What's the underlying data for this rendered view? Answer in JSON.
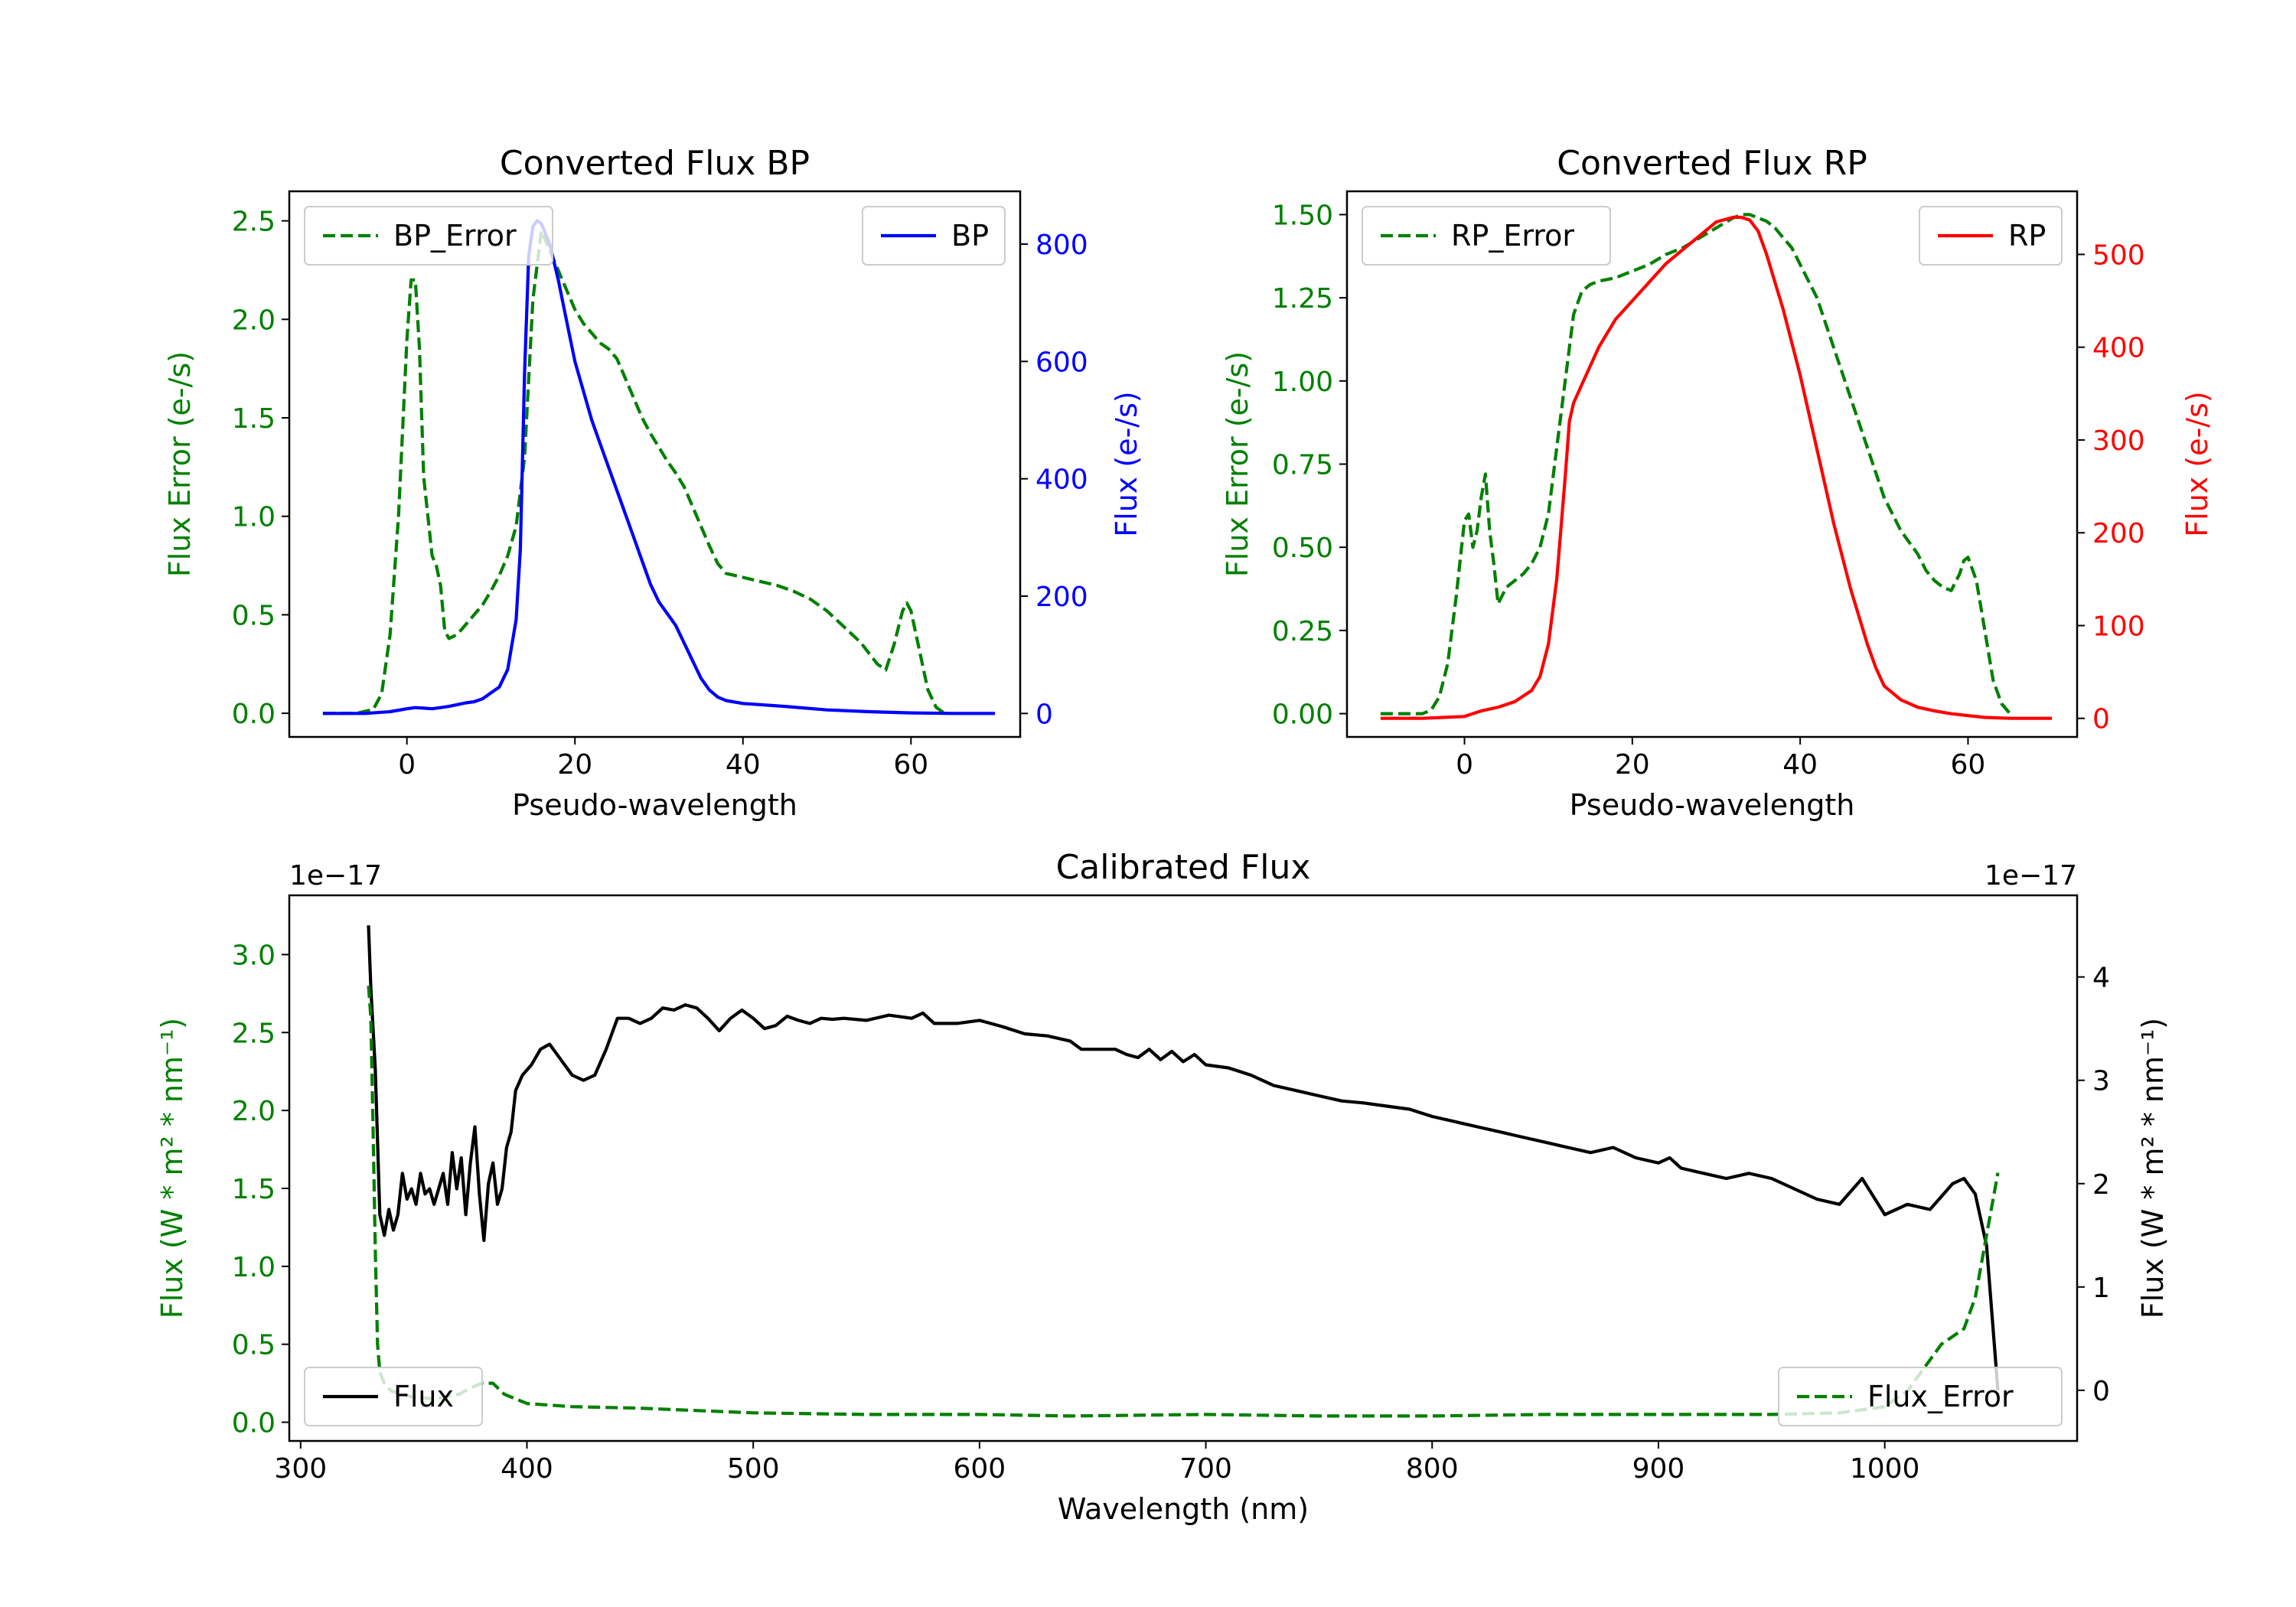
{
  "colors": {
    "bp": "#0000ff",
    "rp": "#ff0000",
    "error": "#008000",
    "flux": "#000000",
    "axis": "#000000",
    "legend_border": "#cccccc"
  },
  "chart_data": [
    {
      "type": "line",
      "title": "Converted Flux BP",
      "xlabel": "Pseudo-wavelength",
      "ylabel": "Flux Error (e-/s)",
      "ylabel_right": "Flux (e-/s)",
      "xlim": [
        -14,
        73
      ],
      "ylim": [
        -0.12,
        2.65
      ],
      "ylim_right": [
        -40,
        890
      ],
      "xticks": [
        "0",
        "20",
        "40",
        "60"
      ],
      "yticks": [
        "0.0",
        "0.5",
        "1.0",
        "1.5",
        "2.0",
        "2.5"
      ],
      "yticks_right": [
        "0",
        "200",
        "400",
        "600",
        "800"
      ],
      "legend_left": "BP_Error",
      "legend_right": "BP",
      "series": [
        {
          "name": "BP_Error",
          "axis": "left",
          "style": "dashed",
          "x": [
            -10,
            -6,
            -4,
            -3,
            -2,
            -1,
            0,
            0.5,
            1,
            1.5,
            2,
            3,
            3.5,
            4,
            4.5,
            5,
            6,
            7,
            8,
            9,
            10,
            11,
            12,
            13,
            14,
            15,
            16,
            17,
            18,
            19,
            20,
            21,
            22,
            23,
            24,
            25,
            26,
            27,
            28,
            29,
            30,
            31,
            32,
            33,
            34,
            35,
            36,
            37,
            38,
            39,
            40,
            42,
            44,
            46,
            48,
            50,
            52,
            54,
            56,
            57,
            58,
            59,
            59.5,
            60,
            61,
            62,
            63,
            64
          ],
          "y": [
            0.0,
            0.0,
            0.02,
            0.1,
            0.4,
            1.0,
            1.9,
            2.2,
            2.2,
            1.85,
            1.2,
            0.8,
            0.75,
            0.65,
            0.42,
            0.38,
            0.4,
            0.45,
            0.5,
            0.55,
            0.62,
            0.7,
            0.8,
            0.95,
            1.3,
            2.1,
            2.45,
            2.35,
            2.25,
            2.15,
            2.05,
            1.98,
            1.93,
            1.88,
            1.85,
            1.8,
            1.7,
            1.6,
            1.5,
            1.42,
            1.35,
            1.28,
            1.22,
            1.15,
            1.05,
            0.95,
            0.85,
            0.76,
            0.71,
            0.7,
            0.69,
            0.67,
            0.65,
            0.62,
            0.58,
            0.52,
            0.44,
            0.36,
            0.25,
            0.22,
            0.35,
            0.52,
            0.56,
            0.52,
            0.32,
            0.12,
            0.03,
            0.0
          ]
        },
        {
          "name": "BP",
          "axis": "right",
          "style": "solid",
          "x": [
            -10,
            -5,
            -2,
            0,
            1,
            2,
            3,
            4,
            5,
            6,
            7,
            8,
            9,
            10,
            11,
            12,
            13,
            13.5,
            14,
            14.5,
            15,
            15.5,
            16,
            17,
            18,
            19,
            20,
            21,
            22,
            23,
            24,
            25,
            26,
            27,
            28,
            29,
            30,
            31,
            32,
            33,
            34,
            35,
            36,
            37,
            38,
            40,
            45,
            50,
            55,
            60,
            65,
            70
          ],
          "y": [
            0,
            0,
            3,
            8,
            10,
            9,
            8,
            10,
            12,
            15,
            18,
            20,
            25,
            35,
            45,
            75,
            160,
            280,
            580,
            780,
            830,
            840,
            835,
            800,
            740,
            670,
            600,
            550,
            500,
            460,
            420,
            380,
            340,
            300,
            260,
            220,
            190,
            170,
            150,
            120,
            90,
            60,
            40,
            28,
            22,
            17,
            12,
            6,
            3,
            1,
            0,
            0
          ]
        }
      ]
    },
    {
      "type": "line",
      "title": "Converted Flux RP",
      "xlabel": "Pseudo-wavelength",
      "ylabel": "Flux Error (e-/s)",
      "ylabel_right": "Flux (e-/s)",
      "xlim": [
        -14,
        73
      ],
      "ylim": [
        -0.07,
        1.57
      ],
      "ylim_right": [
        -20,
        568
      ],
      "xticks": [
        "0",
        "20",
        "40",
        "60"
      ],
      "yticks": [
        "0.00",
        "0.25",
        "0.50",
        "0.75",
        "1.00",
        "1.25",
        "1.50"
      ],
      "yticks_right": [
        "0",
        "100",
        "200",
        "300",
        "400",
        "500"
      ],
      "legend_left": "RP_Error",
      "legend_right": "RP",
      "series": [
        {
          "name": "RP_Error",
          "axis": "left",
          "style": "dashed",
          "x": [
            -10,
            -5,
            -4,
            -3,
            -2,
            -1,
            0,
            0.5,
            1,
            1.5,
            2,
            2.5,
            3,
            3.5,
            4,
            5,
            6,
            7,
            8,
            9,
            10,
            11,
            12,
            13,
            14,
            15,
            16,
            18,
            20,
            22,
            24,
            26,
            28,
            30,
            32,
            33,
            34,
            35,
            36,
            37,
            38,
            39,
            40,
            42,
            44,
            46,
            48,
            50,
            52,
            54,
            55,
            56,
            57,
            58,
            59,
            59.5,
            60,
            61,
            62,
            63,
            64,
            65
          ],
          "y": [
            0.0,
            0.0,
            0.01,
            0.05,
            0.15,
            0.35,
            0.58,
            0.6,
            0.5,
            0.55,
            0.65,
            0.72,
            0.55,
            0.45,
            0.33,
            0.38,
            0.4,
            0.42,
            0.45,
            0.5,
            0.6,
            0.8,
            1.0,
            1.2,
            1.27,
            1.29,
            1.3,
            1.31,
            1.33,
            1.35,
            1.38,
            1.4,
            1.43,
            1.46,
            1.49,
            1.5,
            1.5,
            1.49,
            1.48,
            1.46,
            1.43,
            1.4,
            1.35,
            1.25,
            1.1,
            0.95,
            0.8,
            0.65,
            0.55,
            0.48,
            0.43,
            0.4,
            0.38,
            0.37,
            0.42,
            0.46,
            0.47,
            0.4,
            0.25,
            0.1,
            0.03,
            0.0
          ]
        },
        {
          "name": "RP",
          "axis": "right",
          "style": "solid",
          "x": [
            -10,
            -5,
            0,
            2,
            4,
            6,
            8,
            9,
            10,
            11,
            12,
            12.5,
            13,
            13.5,
            14,
            15,
            16,
            18,
            20,
            22,
            24,
            26,
            28,
            30,
            32,
            33,
            34,
            35,
            36,
            37,
            38,
            40,
            42,
            44,
            46,
            48,
            49,
            50,
            52,
            54,
            56,
            58,
            60,
            62,
            65,
            70
          ],
          "y": [
            0,
            0,
            2,
            8,
            12,
            18,
            30,
            45,
            80,
            150,
            260,
            320,
            340,
            350,
            360,
            380,
            400,
            430,
            450,
            470,
            490,
            505,
            520,
            535,
            540,
            540,
            537,
            525,
            500,
            470,
            440,
            370,
            290,
            210,
            140,
            80,
            55,
            35,
            20,
            12,
            8,
            5,
            3,
            1,
            0,
            0
          ]
        }
      ]
    },
    {
      "type": "line",
      "title": "Calibrated Flux",
      "xlabel": "Wavelength (nm)",
      "ylabel": "Flux (W * m² * nm⁻¹)",
      "ylabel_right": "Flux (W * m² * nm⁻¹)",
      "offset_left": "1e−17",
      "offset_right": "1e−17",
      "xlim": [
        295,
        1085
      ],
      "ylim": [
        -0.12,
        3.38
      ],
      "ylim_right": [
        -0.49,
        4.79
      ],
      "xticks": [
        "300",
        "400",
        "500",
        "600",
        "700",
        "800",
        "900",
        "1000"
      ],
      "yticks": [
        "0.0",
        "0.5",
        "1.0",
        "1.5",
        "2.0",
        "2.5",
        "3.0"
      ],
      "yticks_right": [
        "0",
        "1",
        "2",
        "3",
        "4"
      ],
      "legend_left": "Flux",
      "legend_right": "Flux_Error",
      "series": [
        {
          "name": "Flux",
          "axis": "right",
          "style": "solid",
          "x": [
            330,
            331,
            333,
            335,
            337,
            339,
            341,
            343,
            345,
            347,
            349,
            351,
            353,
            355,
            357,
            359,
            361,
            363,
            365,
            367,
            369,
            371,
            373,
            375,
            377,
            379,
            381,
            383,
            385,
            387,
            389,
            391,
            393,
            395,
            398,
            402,
            406,
            410,
            415,
            420,
            425,
            430,
            435,
            440,
            445,
            450,
            455,
            460,
            465,
            470,
            475,
            480,
            485,
            490,
            495,
            500,
            505,
            510,
            515,
            520,
            525,
            530,
            535,
            540,
            550,
            560,
            570,
            575,
            580,
            590,
            600,
            610,
            620,
            630,
            640,
            645,
            650,
            660,
            665,
            670,
            675,
            680,
            685,
            690,
            695,
            700,
            710,
            720,
            730,
            740,
            750,
            760,
            770,
            780,
            790,
            800,
            810,
            820,
            830,
            840,
            850,
            860,
            870,
            880,
            890,
            900,
            905,
            910,
            920,
            930,
            940,
            950,
            960,
            970,
            980,
            990,
            1000,
            1010,
            1020,
            1030,
            1035,
            1040,
            1045,
            1050
          ],
          "y": [
            4.5,
            3.9,
            3.1,
            1.7,
            1.5,
            1.75,
            1.55,
            1.7,
            2.1,
            1.85,
            1.95,
            1.8,
            2.1,
            1.9,
            1.95,
            1.8,
            1.95,
            2.1,
            1.8,
            2.3,
            1.95,
            2.25,
            1.7,
            2.2,
            2.55,
            1.9,
            1.45,
            2.0,
            2.2,
            1.8,
            1.95,
            2.35,
            2.5,
            2.9,
            3.05,
            3.15,
            3.3,
            3.35,
            3.2,
            3.05,
            3.0,
            3.05,
            3.3,
            3.6,
            3.6,
            3.55,
            3.6,
            3.7,
            3.68,
            3.73,
            3.7,
            3.6,
            3.48,
            3.6,
            3.68,
            3.6,
            3.5,
            3.53,
            3.62,
            3.58,
            3.55,
            3.6,
            3.59,
            3.6,
            3.58,
            3.63,
            3.6,
            3.65,
            3.55,
            3.55,
            3.58,
            3.52,
            3.45,
            3.43,
            3.38,
            3.3,
            3.3,
            3.3,
            3.25,
            3.22,
            3.3,
            3.2,
            3.28,
            3.18,
            3.25,
            3.15,
            3.12,
            3.05,
            2.95,
            2.9,
            2.85,
            2.8,
            2.78,
            2.75,
            2.72,
            2.65,
            2.6,
            2.55,
            2.5,
            2.45,
            2.4,
            2.35,
            2.3,
            2.35,
            2.25,
            2.2,
            2.25,
            2.15,
            2.1,
            2.05,
            2.1,
            2.05,
            1.95,
            1.85,
            1.8,
            2.05,
            1.7,
            1.8,
            1.75,
            2.0,
            2.05,
            1.9,
            1.4,
            0.0
          ]
        },
        {
          "name": "Flux_Error",
          "axis": "left",
          "style": "dashed",
          "x": [
            330,
            331,
            332,
            333,
            334,
            335,
            337,
            340,
            345,
            350,
            360,
            370,
            375,
            380,
            385,
            390,
            400,
            420,
            450,
            500,
            550,
            600,
            640,
            700,
            750,
            800,
            850,
            900,
            950,
            980,
            1000,
            1010,
            1015,
            1020,
            1025,
            1030,
            1035,
            1040,
            1045,
            1050
          ],
          "y": [
            2.8,
            2.6,
            1.9,
            1.1,
            0.5,
            0.32,
            0.25,
            0.2,
            0.18,
            0.16,
            0.15,
            0.18,
            0.22,
            0.25,
            0.25,
            0.18,
            0.12,
            0.1,
            0.09,
            0.06,
            0.05,
            0.05,
            0.04,
            0.05,
            0.04,
            0.04,
            0.05,
            0.05,
            0.05,
            0.06,
            0.1,
            0.2,
            0.3,
            0.4,
            0.5,
            0.55,
            0.6,
            0.8,
            1.2,
            1.6
          ]
        }
      ]
    }
  ]
}
